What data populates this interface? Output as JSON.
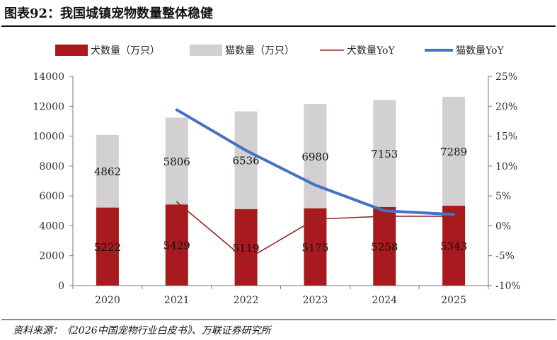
{
  "header": {
    "title": "图表92：我国城镇宠物数量整体稳健",
    "source": "资料来源：《2026中国宠物行业白皮书》、万联证券研究所"
  },
  "chart_data": {
    "type": "bar",
    "stacked": true,
    "categories": [
      "2020",
      "2021",
      "2022",
      "2023",
      "2024",
      "2025"
    ],
    "series": [
      {
        "name": "犬数量（万只）",
        "type": "bar",
        "axis": "left",
        "color": "#A91A1E",
        "values": [
          5222,
          5429,
          5119,
          5175,
          5258,
          5343
        ]
      },
      {
        "name": "猫数量（万只）",
        "type": "bar",
        "axis": "left",
        "color": "#D3D0D1",
        "values": [
          4862,
          5806,
          6536,
          6980,
          7153,
          7289
        ]
      },
      {
        "name": "犬数量YoY",
        "type": "line",
        "axis": "right",
        "color": "#8B2A22",
        "values": [
          null,
          4.0,
          -5.7,
          1.1,
          1.6,
          1.6
        ]
      },
      {
        "name": "猫数量YoY",
        "type": "line",
        "axis": "right",
        "color": "#4472C4",
        "values": [
          null,
          19.4,
          12.6,
          6.8,
          2.5,
          1.9
        ]
      }
    ],
    "left_axis": {
      "min": 0,
      "max": 14000,
      "step": 2000,
      "ticks": [
        "0",
        "2000",
        "4000",
        "6000",
        "8000",
        "10000",
        "12000",
        "14000"
      ]
    },
    "right_axis": {
      "min": -10,
      "max": 25,
      "step": 5,
      "ticks": [
        "-10%",
        "-5%",
        "0%",
        "5%",
        "10%",
        "15%",
        "20%",
        "25%"
      ]
    },
    "legend": "top",
    "grid": false
  }
}
